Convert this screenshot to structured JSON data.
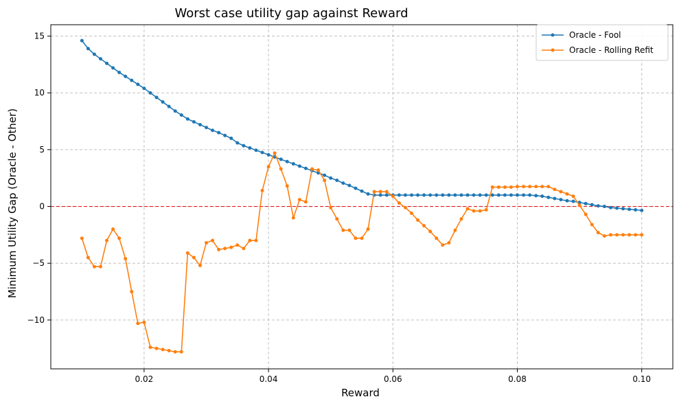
{
  "chart_data": {
    "type": "line",
    "title": "Worst case utility gap against Reward",
    "xlabel": "Reward",
    "ylabel": "Minimum Utility Gap (Oracle - Other)",
    "xlim": [
      0.005,
      0.105
    ],
    "ylim": [
      -14.3,
      16.0
    ],
    "xticks": [
      0.02,
      0.04,
      0.06,
      0.08,
      0.1
    ],
    "xtick_labels": [
      "0.02",
      "0.04",
      "0.06",
      "0.08",
      "0.10"
    ],
    "yticks": [
      -10,
      -5,
      0,
      5,
      10,
      15
    ],
    "ytick_labels": [
      "−10",
      "−5",
      "0",
      "5",
      "10",
      "15"
    ],
    "grid": true,
    "legend_position": "top-right",
    "reference_line": {
      "y": 0,
      "color": "#e41a1c",
      "style": "dashed"
    },
    "x": [
      0.01,
      0.011,
      0.012,
      0.013,
      0.014,
      0.015,
      0.016,
      0.017,
      0.018,
      0.019,
      0.02,
      0.021,
      0.022,
      0.023,
      0.024,
      0.025,
      0.026,
      0.027,
      0.028,
      0.029,
      0.03,
      0.031,
      0.032,
      0.033,
      0.034,
      0.035,
      0.036,
      0.037,
      0.038,
      0.039,
      0.04,
      0.041,
      0.042,
      0.043,
      0.044,
      0.045,
      0.046,
      0.047,
      0.048,
      0.049,
      0.05,
      0.051,
      0.052,
      0.053,
      0.054,
      0.055,
      0.056,
      0.057,
      0.058,
      0.059,
      0.06,
      0.061,
      0.062,
      0.063,
      0.064,
      0.065,
      0.066,
      0.067,
      0.068,
      0.069,
      0.07,
      0.071,
      0.072,
      0.073,
      0.074,
      0.075,
      0.076,
      0.077,
      0.078,
      0.079,
      0.08,
      0.081,
      0.082,
      0.083,
      0.084,
      0.085,
      0.086,
      0.087,
      0.088,
      0.089,
      0.09,
      0.091,
      0.092,
      0.093,
      0.094,
      0.095,
      0.096,
      0.097,
      0.098,
      0.099,
      0.1
    ],
    "series": [
      {
        "name": "Oracle - Fool",
        "color": "#1f77b4",
        "values": [
          14.6,
          13.9,
          13.4,
          13.0,
          12.6,
          12.2,
          11.8,
          11.45,
          11.1,
          10.75,
          10.4,
          10.0,
          9.6,
          9.2,
          8.8,
          8.4,
          8.05,
          7.7,
          7.45,
          7.2,
          6.95,
          6.7,
          6.5,
          6.25,
          6.0,
          5.6,
          5.35,
          5.15,
          4.95,
          4.75,
          4.55,
          4.35,
          4.15,
          3.95,
          3.75,
          3.55,
          3.35,
          3.15,
          2.95,
          2.75,
          2.5,
          2.3,
          2.05,
          1.85,
          1.6,
          1.35,
          1.1,
          1.0,
          1.0,
          1.0,
          1.0,
          1.0,
          1.0,
          1.0,
          1.0,
          1.0,
          1.0,
          1.0,
          1.0,
          1.0,
          1.0,
          1.0,
          1.0,
          1.0,
          1.0,
          1.0,
          1.0,
          1.0,
          1.0,
          1.0,
          1.0,
          1.0,
          1.0,
          0.95,
          0.9,
          0.8,
          0.7,
          0.6,
          0.5,
          0.45,
          0.35,
          0.25,
          0.15,
          0.05,
          0.0,
          -0.1,
          -0.15,
          -0.2,
          -0.25,
          -0.3,
          -0.35
        ]
      },
      {
        "name": "Oracle - Rolling Refit",
        "color": "#ff7f0e",
        "values": [
          -2.8,
          -4.5,
          -5.3,
          -5.3,
          -3.0,
          -2.0,
          -2.8,
          -4.6,
          -7.5,
          -10.3,
          -10.2,
          -12.4,
          -12.5,
          -12.6,
          -12.7,
          -12.8,
          -12.8,
          -4.1,
          -4.5,
          -5.2,
          -3.2,
          -3.0,
          -3.8,
          -3.7,
          -3.6,
          -3.4,
          -3.7,
          -3.0,
          -3.0,
          1.4,
          3.5,
          4.7,
          3.3,
          1.8,
          -1.0,
          0.6,
          0.4,
          3.3,
          3.2,
          2.3,
          -0.1,
          -1.1,
          -2.1,
          -2.1,
          -2.8,
          -2.8,
          -2.0,
          1.3,
          1.3,
          1.3,
          0.9,
          0.3,
          -0.1,
          -0.6,
          -1.2,
          -1.7,
          -2.2,
          -2.8,
          -3.4,
          -3.2,
          -2.1,
          -1.1,
          -0.2,
          -0.4,
          -0.4,
          -0.3,
          1.7,
          1.7,
          1.7,
          1.7,
          1.75,
          1.75,
          1.75,
          1.75,
          1.75,
          1.75,
          1.5,
          1.3,
          1.1,
          0.9,
          0.1,
          -0.7,
          -1.6,
          -2.3,
          -2.6,
          -2.5,
          -2.5,
          -2.5,
          -2.5,
          -2.5,
          -2.5
        ]
      }
    ]
  }
}
